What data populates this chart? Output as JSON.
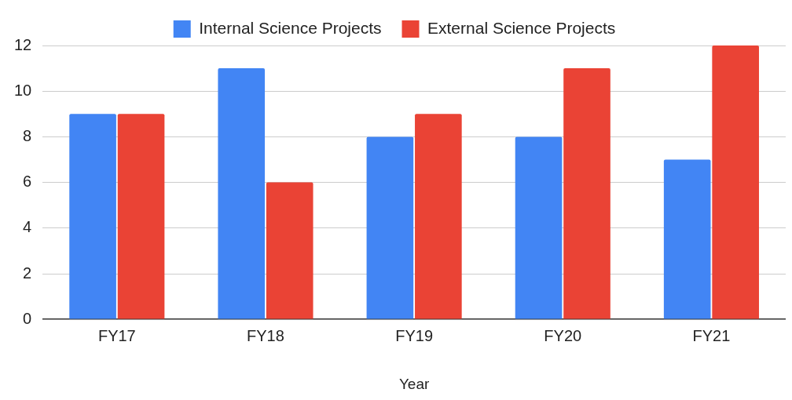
{
  "chart_data": {
    "type": "bar",
    "xlabel": "Year",
    "categories": [
      "FY17",
      "FY18",
      "FY19",
      "FY20",
      "FY21"
    ],
    "series": [
      {
        "name": "Internal Science Projects",
        "color": "#4285f4",
        "values": [
          9,
          11,
          8,
          8,
          7
        ]
      },
      {
        "name": "External Science Projects",
        "color": "#ea4335",
        "values": [
          9,
          6,
          9,
          11,
          12
        ]
      }
    ],
    "ylim": [
      0,
      12
    ],
    "yticks": [
      0,
      2,
      4,
      6,
      8,
      10,
      12
    ],
    "grid": "y",
    "legend": "top"
  }
}
